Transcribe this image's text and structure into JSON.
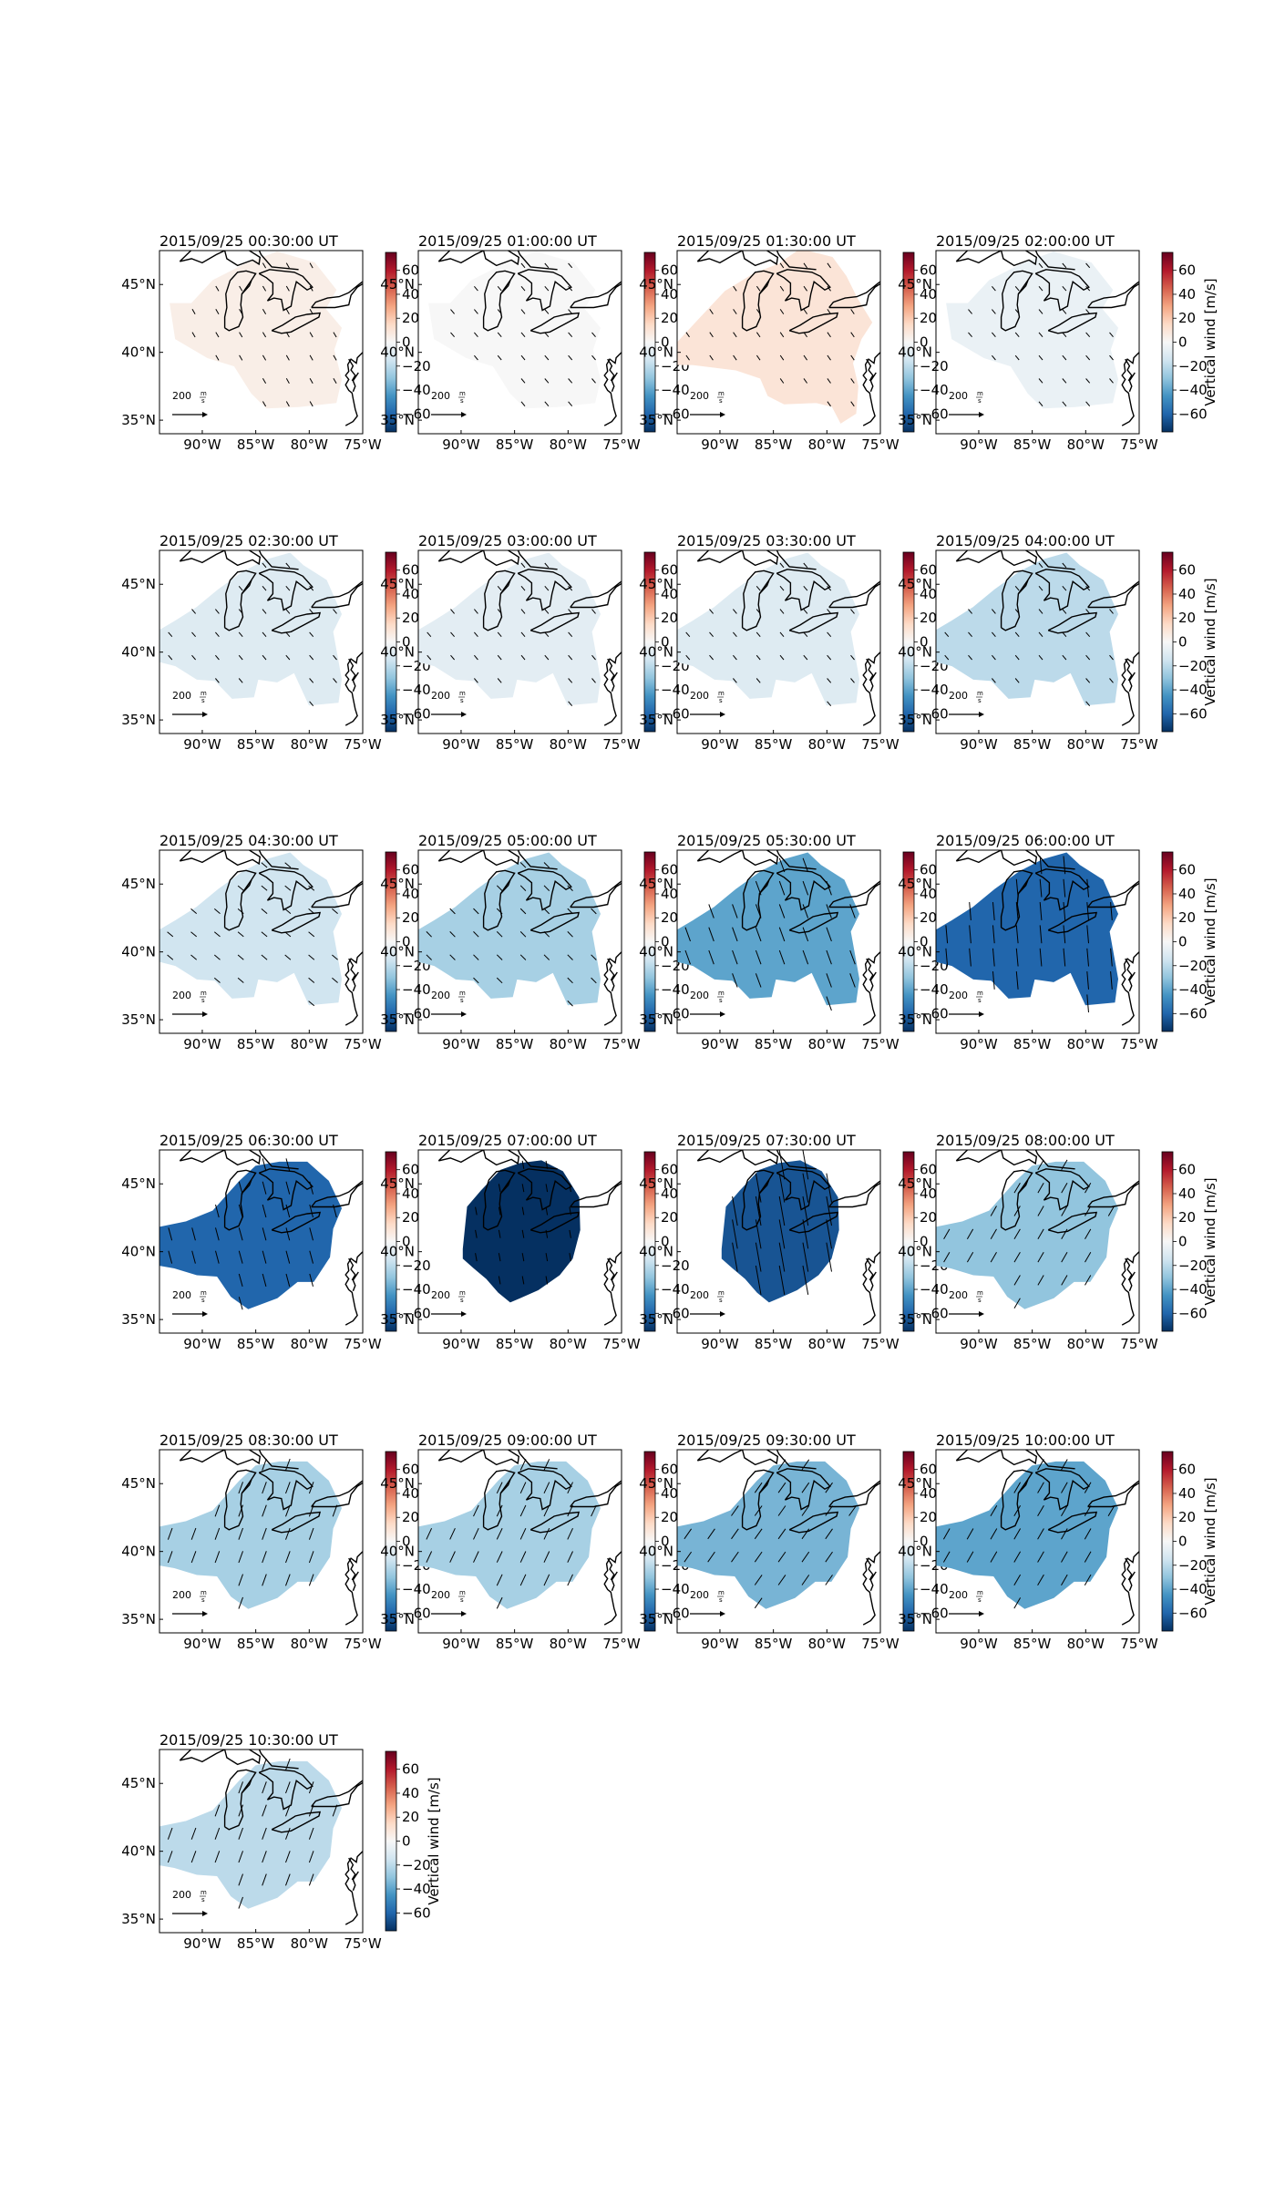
{
  "chart_data": {
    "type": "heatmap",
    "colorbar": {
      "label": "Vertical wind [m/s]",
      "ticks": [
        60,
        40,
        20,
        0,
        -20,
        -40,
        -60
      ],
      "range": [
        -75,
        75
      ],
      "colormap": "RdBu_r",
      "colors": [
        "#053061",
        "#2166ac",
        "#4393c3",
        "#92c5de",
        "#d1e5f0",
        "#f7f7f7",
        "#fddbc7",
        "#f4a582",
        "#d6604d",
        "#b2182b",
        "#67001f"
      ]
    },
    "lon_ticks": [
      "90°W",
      "85°W",
      "80°W",
      "75°W"
    ],
    "lat_ticks": [
      "45°N",
      "40°N",
      "35°N"
    ],
    "lon_range": [
      -94,
      -75
    ],
    "lat_range": [
      34,
      47.5
    ],
    "reference_vector": {
      "value": "200",
      "unit_num": "m",
      "unit_den": "s"
    },
    "panels": [
      {
        "title": "2015/09/25 00:30:00 UT",
        "vertical_wind": 5,
        "region": "A",
        "vector_scale": 0.35,
        "vector_dir": 150
      },
      {
        "title": "2015/09/25 01:00:00 UT",
        "vertical_wind": 0,
        "region": "A",
        "vector_scale": 0.35,
        "vector_dir": 140
      },
      {
        "title": "2015/09/25 01:30:00 UT",
        "vertical_wind": 10,
        "region": "B",
        "vector_scale": 0.35,
        "vector_dir": 145
      },
      {
        "title": "2015/09/25 02:00:00 UT",
        "vertical_wind": -5,
        "region": "A",
        "vector_scale": 0.35,
        "vector_dir": 140
      },
      {
        "title": "2015/09/25 02:30:00 UT",
        "vertical_wind": -10,
        "region": "C",
        "vector_scale": 0.35,
        "vector_dir": 140
      },
      {
        "title": "2015/09/25 03:00:00 UT",
        "vertical_wind": -8,
        "region": "C",
        "vector_scale": 0.35,
        "vector_dir": 140
      },
      {
        "title": "2015/09/25 03:30:00 UT",
        "vertical_wind": -10,
        "region": "C",
        "vector_scale": 0.35,
        "vector_dir": 140
      },
      {
        "title": "2015/09/25 04:00:00 UT",
        "vertical_wind": -20,
        "region": "C",
        "vector_scale": 0.35,
        "vector_dir": 140
      },
      {
        "title": "2015/09/25 04:30:00 UT",
        "vertical_wind": -15,
        "region": "C",
        "vector_scale": 0.45,
        "vector_dir": 130
      },
      {
        "title": "2015/09/25 05:00:00 UT",
        "vertical_wind": -25,
        "region": "C",
        "vector_scale": 0.45,
        "vector_dir": 135
      },
      {
        "title": "2015/09/25 05:30:00 UT",
        "vertical_wind": -40,
        "region": "C",
        "vector_scale": 0.9,
        "vector_dir": 160
      },
      {
        "title": "2015/09/25 06:00:00 UT",
        "vertical_wind": -60,
        "region": "C",
        "vector_scale": 1.1,
        "vector_dir": 175
      },
      {
        "title": "2015/09/25 06:30:00 UT",
        "vertical_wind": -60,
        "region": "D",
        "vector_scale": 0.8,
        "vector_dir": 165
      },
      {
        "title": "2015/09/25 07:00:00 UT",
        "vertical_wind": -75,
        "region": "E",
        "vector_scale": 0.5,
        "vector_dir": 170
      },
      {
        "title": "2015/09/25 07:30:00 UT",
        "vertical_wind": -65,
        "region": "E",
        "vector_scale": 1.8,
        "vector_dir": 170
      },
      {
        "title": "2015/09/25 08:00:00 UT",
        "vertical_wind": -30,
        "region": "D",
        "vector_scale": 0.7,
        "vector_dir": 210
      },
      {
        "title": "2015/09/25 08:30:00 UT",
        "vertical_wind": -25,
        "region": "D",
        "vector_scale": 0.75,
        "vector_dir": 200
      },
      {
        "title": "2015/09/25 09:00:00 UT",
        "vertical_wind": -25,
        "region": "D",
        "vector_scale": 0.75,
        "vector_dir": 205
      },
      {
        "title": "2015/09/25 09:30:00 UT",
        "vertical_wind": -35,
        "region": "D",
        "vector_scale": 0.75,
        "vector_dir": 215
      },
      {
        "title": "2015/09/25 10:00:00 UT",
        "vertical_wind": -40,
        "region": "D",
        "vector_scale": 0.75,
        "vector_dir": 210
      },
      {
        "title": "2015/09/25 10:30:00 UT",
        "vertical_wind": -20,
        "region": "D",
        "vector_scale": 0.75,
        "vector_dir": 200
      }
    ]
  }
}
